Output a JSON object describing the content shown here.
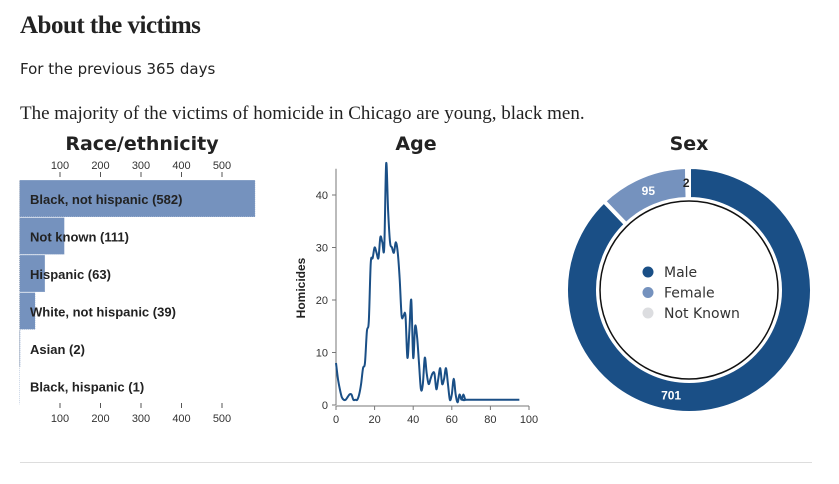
{
  "header": {
    "title": "About the victims",
    "subtitle": "For the previous 365 days",
    "lead": "The majority of the victims of homicide in Chicago are young, black men."
  },
  "chart_data": [
    {
      "type": "bar",
      "orientation": "horizontal",
      "title": "Race/ethnicity",
      "categories": [
        "Black, not hispanic",
        "Not known",
        "Hispanic",
        "White, not hispanic",
        "Asian",
        "Black, hispanic"
      ],
      "values": [
        582,
        111,
        63,
        39,
        2,
        1
      ],
      "labels": [
        "Black, not hispanic (582)",
        "Not known (111)",
        "Hispanic (63)",
        "White, not hispanic (39)",
        "Asian (2)",
        "Black, hispanic (1)"
      ],
      "xticks": [
        100,
        200,
        300,
        400,
        500
      ],
      "color": "#7592be"
    },
    {
      "type": "line",
      "title": "Age",
      "xlabel": "",
      "ylabel": "Homicides",
      "xlim": [
        0,
        100
      ],
      "ylim": [
        0,
        45
      ],
      "xticks": [
        0,
        20,
        40,
        60,
        80,
        100
      ],
      "yticks": [
        0,
        10,
        20,
        30,
        40
      ],
      "color": "#1a4f86",
      "x": [
        0,
        1,
        2,
        3,
        4,
        5,
        6,
        7,
        8,
        9,
        10,
        11,
        12,
        13,
        14,
        15,
        16,
        17,
        18,
        19,
        20,
        21,
        22,
        23,
        24,
        25,
        26,
        27,
        28,
        29,
        30,
        31,
        32,
        33,
        34,
        35,
        36,
        37,
        38,
        39,
        40,
        41,
        42,
        43,
        44,
        45,
        46,
        47,
        48,
        49,
        50,
        51,
        52,
        53,
        54,
        55,
        56,
        57,
        58,
        59,
        60,
        61,
        62,
        63,
        64,
        65,
        66,
        67,
        68,
        95
      ],
      "y": [
        8,
        5,
        3,
        1.5,
        1,
        1,
        1.5,
        2,
        2,
        1,
        1,
        1,
        2,
        4,
        7,
        8,
        14,
        16,
        27,
        28,
        30,
        29,
        28,
        32,
        31,
        30,
        46,
        37,
        31,
        30,
        29,
        31,
        29,
        24,
        17,
        17,
        17,
        9,
        14,
        20,
        9,
        15,
        13,
        8,
        3,
        4,
        9,
        6,
        4,
        5,
        6,
        6,
        3,
        5,
        7,
        4,
        5,
        7,
        4,
        1,
        2,
        5,
        2,
        0.5,
        2,
        1,
        2,
        1,
        1,
        1
      ]
    },
    {
      "type": "pie",
      "donut": true,
      "title": "Sex",
      "categories": [
        "Male",
        "Female",
        "Not Known"
      ],
      "values": [
        701,
        95,
        2
      ],
      "colors": [
        "#1a4f86",
        "#7592be",
        "#dcdde0"
      ]
    }
  ]
}
